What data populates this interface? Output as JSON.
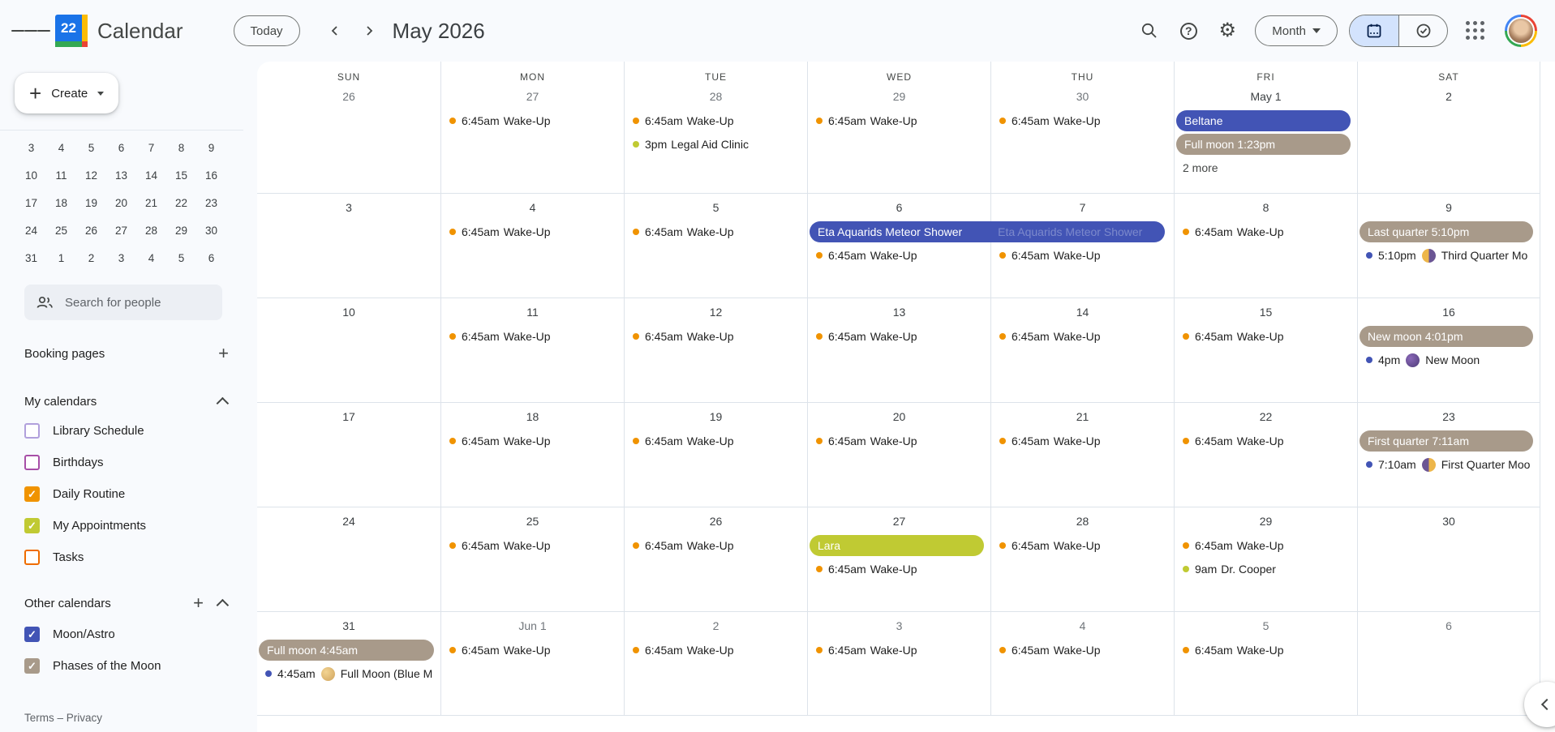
{
  "header": {
    "logo_day": "22",
    "app_title": "Calendar",
    "today_button": "Today",
    "current_range": "May 2026",
    "view_dropdown": "Month",
    "icons": {
      "menu": "hamburger-menu",
      "prev": "chevron-left",
      "next": "chevron-right",
      "search": "magnifier",
      "help": "question-circle",
      "settings": "gear",
      "calendar_view": "calendar-icon (selected)",
      "tasks_view": "check-circle-icon",
      "apps": "google-apps-grid",
      "avatar": "user-photo"
    }
  },
  "sidebar": {
    "create_button": "Create",
    "mini_calendar": {
      "rows": [
        [
          "3",
          "4",
          "5",
          "6",
          "7",
          "8",
          "9"
        ],
        [
          "10",
          "11",
          "12",
          "13",
          "14",
          "15",
          "16"
        ],
        [
          "17",
          "18",
          "19",
          "20",
          "21",
          "22",
          "23"
        ],
        [
          "24",
          "25",
          "26",
          "27",
          "28",
          "29",
          "30"
        ],
        [
          "31",
          "1",
          "2",
          "3",
          "4",
          "5",
          "6"
        ]
      ]
    },
    "search_people_placeholder": "Search for people",
    "booking_pages_label": "Booking pages",
    "my_calendars": {
      "title": "My calendars",
      "items": [
        {
          "label": "Library Schedule",
          "color": "#b1a0dc",
          "checked": false
        },
        {
          "label": "Birthdays",
          "color": "#a74fa7",
          "checked": false
        },
        {
          "label": "Daily Routine",
          "color": "#f09300",
          "checked": true
        },
        {
          "label": "My Appointments",
          "color": "#c0ca33",
          "checked": true
        },
        {
          "label": "Tasks",
          "color": "#ef6c00",
          "checked": false
        }
      ]
    },
    "other_calendars": {
      "title": "Other calendars",
      "items": [
        {
          "label": "Moon/Astro",
          "color": "#4254b5",
          "checked": true
        },
        {
          "label": "Phases of the Moon",
          "color": "#a89a8a",
          "checked": true
        }
      ]
    },
    "footer": "Terms – Privacy"
  },
  "colors": {
    "blue": "#4254b5",
    "taupe": "#a89a8a",
    "olive": "#c0ca33",
    "orange": "#f09300",
    "grid_line": "#dde3ea",
    "view_toggle_selected_bg": "#d3e3fd"
  },
  "calendar": {
    "weeks": [
      [
        {
          "dayname": "SUN",
          "label": "26",
          "muted": true,
          "events": []
        },
        {
          "dayname": "MON",
          "label": "27",
          "muted": true,
          "events": [
            {
              "k": "timed",
              "time": "6:45am",
              "title": "Wake-Up",
              "dot": "orange"
            }
          ]
        },
        {
          "dayname": "TUE",
          "label": "28",
          "muted": true,
          "events": [
            {
              "k": "timed",
              "time": "6:45am",
              "title": "Wake-Up",
              "dot": "orange"
            },
            {
              "k": "timed",
              "time": "3pm",
              "title": "Legal Aid Clinic",
              "dot": "olive"
            }
          ]
        },
        {
          "dayname": "WED",
          "label": "29",
          "muted": true,
          "events": [
            {
              "k": "timed",
              "time": "6:45am",
              "title": "Wake-Up",
              "dot": "orange"
            }
          ]
        },
        {
          "dayname": "THU",
          "label": "30",
          "muted": true,
          "events": [
            {
              "k": "timed",
              "time": "6:45am",
              "title": "Wake-Up",
              "dot": "orange"
            }
          ]
        },
        {
          "dayname": "FRI",
          "label": "May 1",
          "muted": false,
          "events": [
            {
              "k": "pill",
              "label": "Beltane",
              "color": "blue"
            },
            {
              "k": "pill",
              "label": "Full moon 1:23pm",
              "color": "taupe"
            },
            {
              "k": "more",
              "label": "2 more"
            }
          ]
        },
        {
          "dayname": "SAT",
          "label": "2",
          "muted": false,
          "events": []
        }
      ],
      [
        {
          "label": "3",
          "muted": false,
          "events": []
        },
        {
          "label": "4",
          "muted": false,
          "events": [
            {
              "k": "timed",
              "time": "6:45am",
              "title": "Wake-Up",
              "dot": "orange"
            }
          ]
        },
        {
          "label": "5",
          "muted": false,
          "events": [
            {
              "k": "timed",
              "time": "6:45am",
              "title": "Wake-Up",
              "dot": "orange"
            }
          ]
        },
        {
          "label": "6",
          "muted": false,
          "events": [
            {
              "k": "banner",
              "label": "Eta Aquarids Meteor Shower",
              "color": "blue",
              "span": 2,
              "ghost": true
            },
            {
              "k": "timed",
              "time": "6:45am",
              "title": "Wake-Up",
              "dot": "orange"
            }
          ]
        },
        {
          "label": "7",
          "muted": false,
          "events": [
            {
              "k": "spacer"
            },
            {
              "k": "timed",
              "time": "6:45am",
              "title": "Wake-Up",
              "dot": "orange"
            }
          ]
        },
        {
          "label": "8",
          "muted": false,
          "events": [
            {
              "k": "timed",
              "time": "6:45am",
              "title": "Wake-Up",
              "dot": "orange"
            }
          ]
        },
        {
          "label": "9",
          "muted": false,
          "events": [
            {
              "k": "pill",
              "label": "Last quarter 5:10pm",
              "color": "taupe"
            },
            {
              "k": "timed",
              "time": "5:10pm",
              "title": "Third Quarter Mo",
              "dot": "blue",
              "moon": "last"
            }
          ]
        }
      ],
      [
        {
          "label": "10",
          "muted": false,
          "events": []
        },
        {
          "label": "11",
          "muted": false,
          "events": [
            {
              "k": "timed",
              "time": "6:45am",
              "title": "Wake-Up",
              "dot": "orange"
            }
          ]
        },
        {
          "label": "12",
          "muted": false,
          "events": [
            {
              "k": "timed",
              "time": "6:45am",
              "title": "Wake-Up",
              "dot": "orange"
            }
          ]
        },
        {
          "label": "13",
          "muted": false,
          "events": [
            {
              "k": "timed",
              "time": "6:45am",
              "title": "Wake-Up",
              "dot": "orange"
            }
          ]
        },
        {
          "label": "14",
          "muted": false,
          "events": [
            {
              "k": "timed",
              "time": "6:45am",
              "title": "Wake-Up",
              "dot": "orange"
            }
          ]
        },
        {
          "label": "15",
          "muted": false,
          "events": [
            {
              "k": "timed",
              "time": "6:45am",
              "title": "Wake-Up",
              "dot": "orange"
            }
          ]
        },
        {
          "label": "16",
          "muted": false,
          "events": [
            {
              "k": "pill",
              "label": "New moon 4:01pm",
              "color": "taupe"
            },
            {
              "k": "timed",
              "time": "4pm",
              "title": "New Moon",
              "dot": "blue",
              "moon": "new"
            }
          ]
        }
      ],
      [
        {
          "label": "17",
          "muted": false,
          "events": []
        },
        {
          "label": "18",
          "muted": false,
          "events": [
            {
              "k": "timed",
              "time": "6:45am",
              "title": "Wake-Up",
              "dot": "orange"
            }
          ]
        },
        {
          "label": "19",
          "muted": false,
          "events": [
            {
              "k": "timed",
              "time": "6:45am",
              "title": "Wake-Up",
              "dot": "orange"
            }
          ]
        },
        {
          "label": "20",
          "muted": false,
          "events": [
            {
              "k": "timed",
              "time": "6:45am",
              "title": "Wake-Up",
              "dot": "orange"
            }
          ]
        },
        {
          "label": "21",
          "muted": false,
          "events": [
            {
              "k": "timed",
              "time": "6:45am",
              "title": "Wake-Up",
              "dot": "orange"
            }
          ]
        },
        {
          "label": "22",
          "muted": false,
          "events": [
            {
              "k": "timed",
              "time": "6:45am",
              "title": "Wake-Up",
              "dot": "orange"
            }
          ]
        },
        {
          "label": "23",
          "muted": false,
          "events": [
            {
              "k": "pill",
              "label": "First quarter 7:11am",
              "color": "taupe"
            },
            {
              "k": "timed",
              "time": "7:10am",
              "title": "First Quarter Moo",
              "dot": "blue",
              "moon": "first"
            }
          ]
        }
      ],
      [
        {
          "label": "24",
          "muted": false,
          "events": []
        },
        {
          "label": "25",
          "muted": false,
          "events": [
            {
              "k": "timed",
              "time": "6:45am",
              "title": "Wake-Up",
              "dot": "orange"
            }
          ]
        },
        {
          "label": "26",
          "muted": false,
          "events": [
            {
              "k": "timed",
              "time": "6:45am",
              "title": "Wake-Up",
              "dot": "orange"
            }
          ]
        },
        {
          "label": "27",
          "muted": false,
          "events": [
            {
              "k": "pill",
              "label": "Lara",
              "color": "olive"
            },
            {
              "k": "timed",
              "time": "6:45am",
              "title": "Wake-Up",
              "dot": "orange"
            }
          ]
        },
        {
          "label": "28",
          "muted": false,
          "events": [
            {
              "k": "timed",
              "time": "6:45am",
              "title": "Wake-Up",
              "dot": "orange"
            }
          ]
        },
        {
          "label": "29",
          "muted": false,
          "events": [
            {
              "k": "timed",
              "time": "6:45am",
              "title": "Wake-Up",
              "dot": "orange"
            },
            {
              "k": "timed",
              "time": "9am",
              "title": "Dr. Cooper",
              "dot": "olive"
            }
          ]
        },
        {
          "label": "30",
          "muted": false,
          "events": []
        }
      ],
      [
        {
          "label": "31",
          "muted": false,
          "events": [
            {
              "k": "pill",
              "label": "Full moon 4:45am",
              "color": "taupe"
            },
            {
              "k": "timed",
              "time": "4:45am",
              "title": "Full Moon (Blue M",
              "dot": "blue",
              "moon": "full"
            }
          ]
        },
        {
          "label": "Jun 1",
          "muted": true,
          "events": [
            {
              "k": "timed",
              "time": "6:45am",
              "title": "Wake-Up",
              "dot": "orange"
            }
          ]
        },
        {
          "label": "2",
          "muted": true,
          "events": [
            {
              "k": "timed",
              "time": "6:45am",
              "title": "Wake-Up",
              "dot": "orange"
            }
          ]
        },
        {
          "label": "3",
          "muted": true,
          "events": [
            {
              "k": "timed",
              "time": "6:45am",
              "title": "Wake-Up",
              "dot": "orange"
            }
          ]
        },
        {
          "label": "4",
          "muted": true,
          "events": [
            {
              "k": "timed",
              "time": "6:45am",
              "title": "Wake-Up",
              "dot": "orange"
            }
          ]
        },
        {
          "label": "5",
          "muted": true,
          "events": [
            {
              "k": "timed",
              "time": "6:45am",
              "title": "Wake-Up",
              "dot": "orange"
            }
          ]
        },
        {
          "label": "6",
          "muted": true,
          "events": []
        }
      ]
    ]
  }
}
